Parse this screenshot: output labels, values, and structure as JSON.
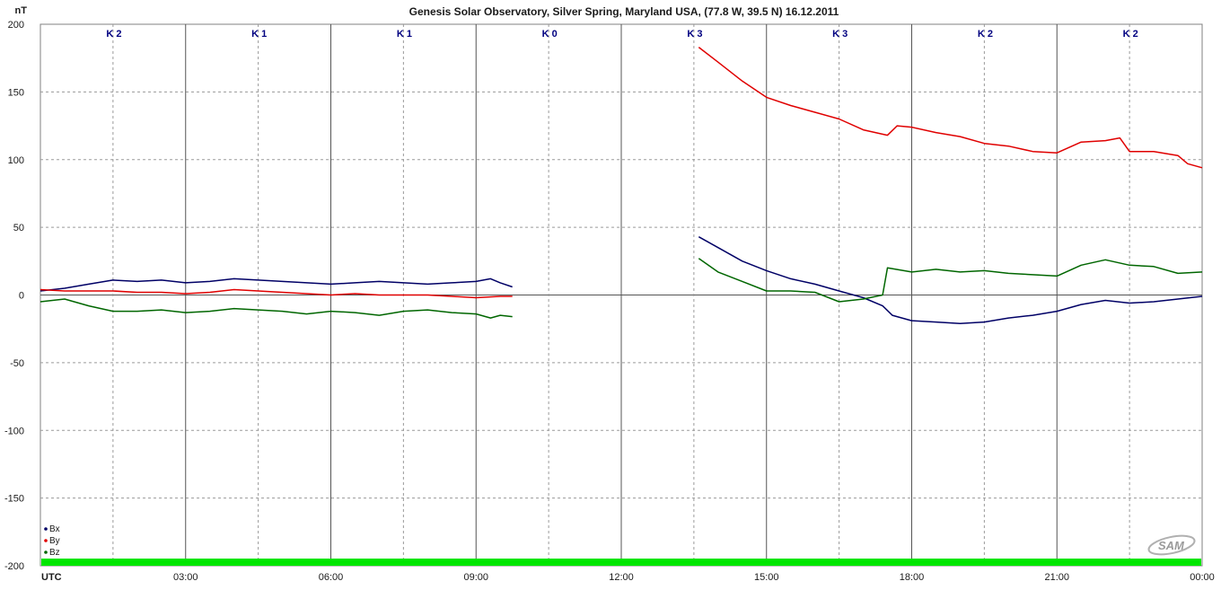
{
  "chart_data": {
    "type": "line",
    "title": "Genesis Solar Observatory, Silver Spring, Maryland USA, (77.8 W, 39.5 N)  16.12.2011",
    "ylabel": "nT",
    "ylim": [
      -200,
      200
    ],
    "yticks": [
      200,
      150,
      100,
      50,
      0,
      -50,
      -100,
      -150,
      -200
    ],
    "xlim": [
      0,
      24
    ],
    "xtick_labels": [
      "UTC",
      "03:00",
      "06:00",
      "09:00",
      "12:00",
      "15:00",
      "18:00",
      "21:00",
      "00:00"
    ],
    "k_index_labels": [
      "K 2",
      "K 1",
      "K 1",
      "K 0",
      "K 3",
      "K 3",
      "K 2",
      "K 2"
    ],
    "grid": true,
    "legend_position": "bottom-left",
    "series": [
      {
        "name": "Bx",
        "color": "#000066",
        "segments": [
          [
            [
              0,
              3
            ],
            [
              0.5,
              5
            ],
            [
              1,
              8
            ],
            [
              1.5,
              11
            ],
            [
              2,
              10
            ],
            [
              2.5,
              11
            ],
            [
              3,
              9
            ],
            [
              3.5,
              10
            ],
            [
              4,
              12
            ],
            [
              4.5,
              11
            ],
            [
              5,
              10
            ],
            [
              5.5,
              9
            ],
            [
              6,
              8
            ],
            [
              6.5,
              9
            ],
            [
              7,
              10
            ],
            [
              7.5,
              9
            ],
            [
              8,
              8
            ],
            [
              8.5,
              9
            ],
            [
              9,
              10
            ],
            [
              9.3,
              12
            ],
            [
              9.5,
              9
            ],
            [
              9.75,
              6
            ]
          ],
          [
            [
              13.6,
              43
            ],
            [
              14,
              35
            ],
            [
              14.5,
              25
            ],
            [
              15,
              18
            ],
            [
              15.5,
              12
            ],
            [
              16,
              8
            ],
            [
              16.5,
              3
            ],
            [
              17,
              -2
            ],
            [
              17.4,
              -8
            ],
            [
              17.6,
              -15
            ],
            [
              18,
              -19
            ],
            [
              18.5,
              -20
            ],
            [
              19,
              -21
            ],
            [
              19.5,
              -20
            ],
            [
              20,
              -17
            ],
            [
              20.5,
              -15
            ],
            [
              21,
              -12
            ],
            [
              21.5,
              -7
            ],
            [
              22,
              -4
            ],
            [
              22.5,
              -6
            ],
            [
              23,
              -5
            ],
            [
              23.5,
              -3
            ],
            [
              24,
              -1
            ]
          ]
        ]
      },
      {
        "name": "By",
        "color": "#e00000",
        "segments": [
          [
            [
              0,
              4
            ],
            [
              0.5,
              3
            ],
            [
              1,
              3
            ],
            [
              1.5,
              3
            ],
            [
              2,
              2
            ],
            [
              2.5,
              2
            ],
            [
              3,
              1
            ],
            [
              3.5,
              2
            ],
            [
              4,
              4
            ],
            [
              4.5,
              3
            ],
            [
              5,
              2
            ],
            [
              5.5,
              1
            ],
            [
              6,
              0
            ],
            [
              6.5,
              1
            ],
            [
              7,
              0
            ],
            [
              7.5,
              0
            ],
            [
              8,
              0
            ],
            [
              8.5,
              -1
            ],
            [
              9,
              -2
            ],
            [
              9.5,
              -1
            ],
            [
              9.75,
              -1
            ]
          ],
          [
            [
              13.6,
              183
            ],
            [
              14,
              172
            ],
            [
              14.5,
              158
            ],
            [
              15,
              146
            ],
            [
              15.5,
              140
            ],
            [
              16,
              135
            ],
            [
              16.5,
              130
            ],
            [
              17,
              122
            ],
            [
              17.5,
              118
            ],
            [
              17.7,
              125
            ],
            [
              18,
              124
            ],
            [
              18.5,
              120
            ],
            [
              19,
              117
            ],
            [
              19.5,
              112
            ],
            [
              20,
              110
            ],
            [
              20.5,
              106
            ],
            [
              21,
              105
            ],
            [
              21.5,
              113
            ],
            [
              22,
              114
            ],
            [
              22.3,
              116
            ],
            [
              22.5,
              106
            ],
            [
              23,
              106
            ],
            [
              23.5,
              103
            ],
            [
              23.7,
              97
            ],
            [
              24,
              94
            ]
          ]
        ]
      },
      {
        "name": "Bz",
        "color": "#006600",
        "segments": [
          [
            [
              0,
              -5
            ],
            [
              0.5,
              -3
            ],
            [
              1,
              -8
            ],
            [
              1.5,
              -12
            ],
            [
              2,
              -12
            ],
            [
              2.5,
              -11
            ],
            [
              3,
              -13
            ],
            [
              3.5,
              -12
            ],
            [
              4,
              -10
            ],
            [
              4.5,
              -11
            ],
            [
              5,
              -12
            ],
            [
              5.5,
              -14
            ],
            [
              6,
              -12
            ],
            [
              6.5,
              -13
            ],
            [
              7,
              -15
            ],
            [
              7.5,
              -12
            ],
            [
              8,
              -11
            ],
            [
              8.5,
              -13
            ],
            [
              9,
              -14
            ],
            [
              9.3,
              -17
            ],
            [
              9.5,
              -15
            ],
            [
              9.75,
              -16
            ]
          ],
          [
            [
              13.6,
              27
            ],
            [
              14,
              17
            ],
            [
              14.5,
              10
            ],
            [
              15,
              3
            ],
            [
              15.5,
              3
            ],
            [
              16,
              2
            ],
            [
              16.5,
              -5
            ],
            [
              17,
              -3
            ],
            [
              17.4,
              0
            ],
            [
              17.5,
              20
            ],
            [
              18,
              17
            ],
            [
              18.5,
              19
            ],
            [
              19,
              17
            ],
            [
              19.5,
              18
            ],
            [
              20,
              16
            ],
            [
              20.5,
              15
            ],
            [
              21,
              14
            ],
            [
              21.5,
              22
            ],
            [
              22,
              26
            ],
            [
              22.5,
              22
            ],
            [
              23,
              21
            ],
            [
              23.5,
              16
            ],
            [
              24,
              17
            ]
          ]
        ]
      }
    ]
  },
  "colors": {
    "status_bar": "#00e600",
    "grid": "#9a9a9a",
    "zero_line": "#555555",
    "k_label": "#000080"
  },
  "logo": {
    "text": "SAM"
  }
}
